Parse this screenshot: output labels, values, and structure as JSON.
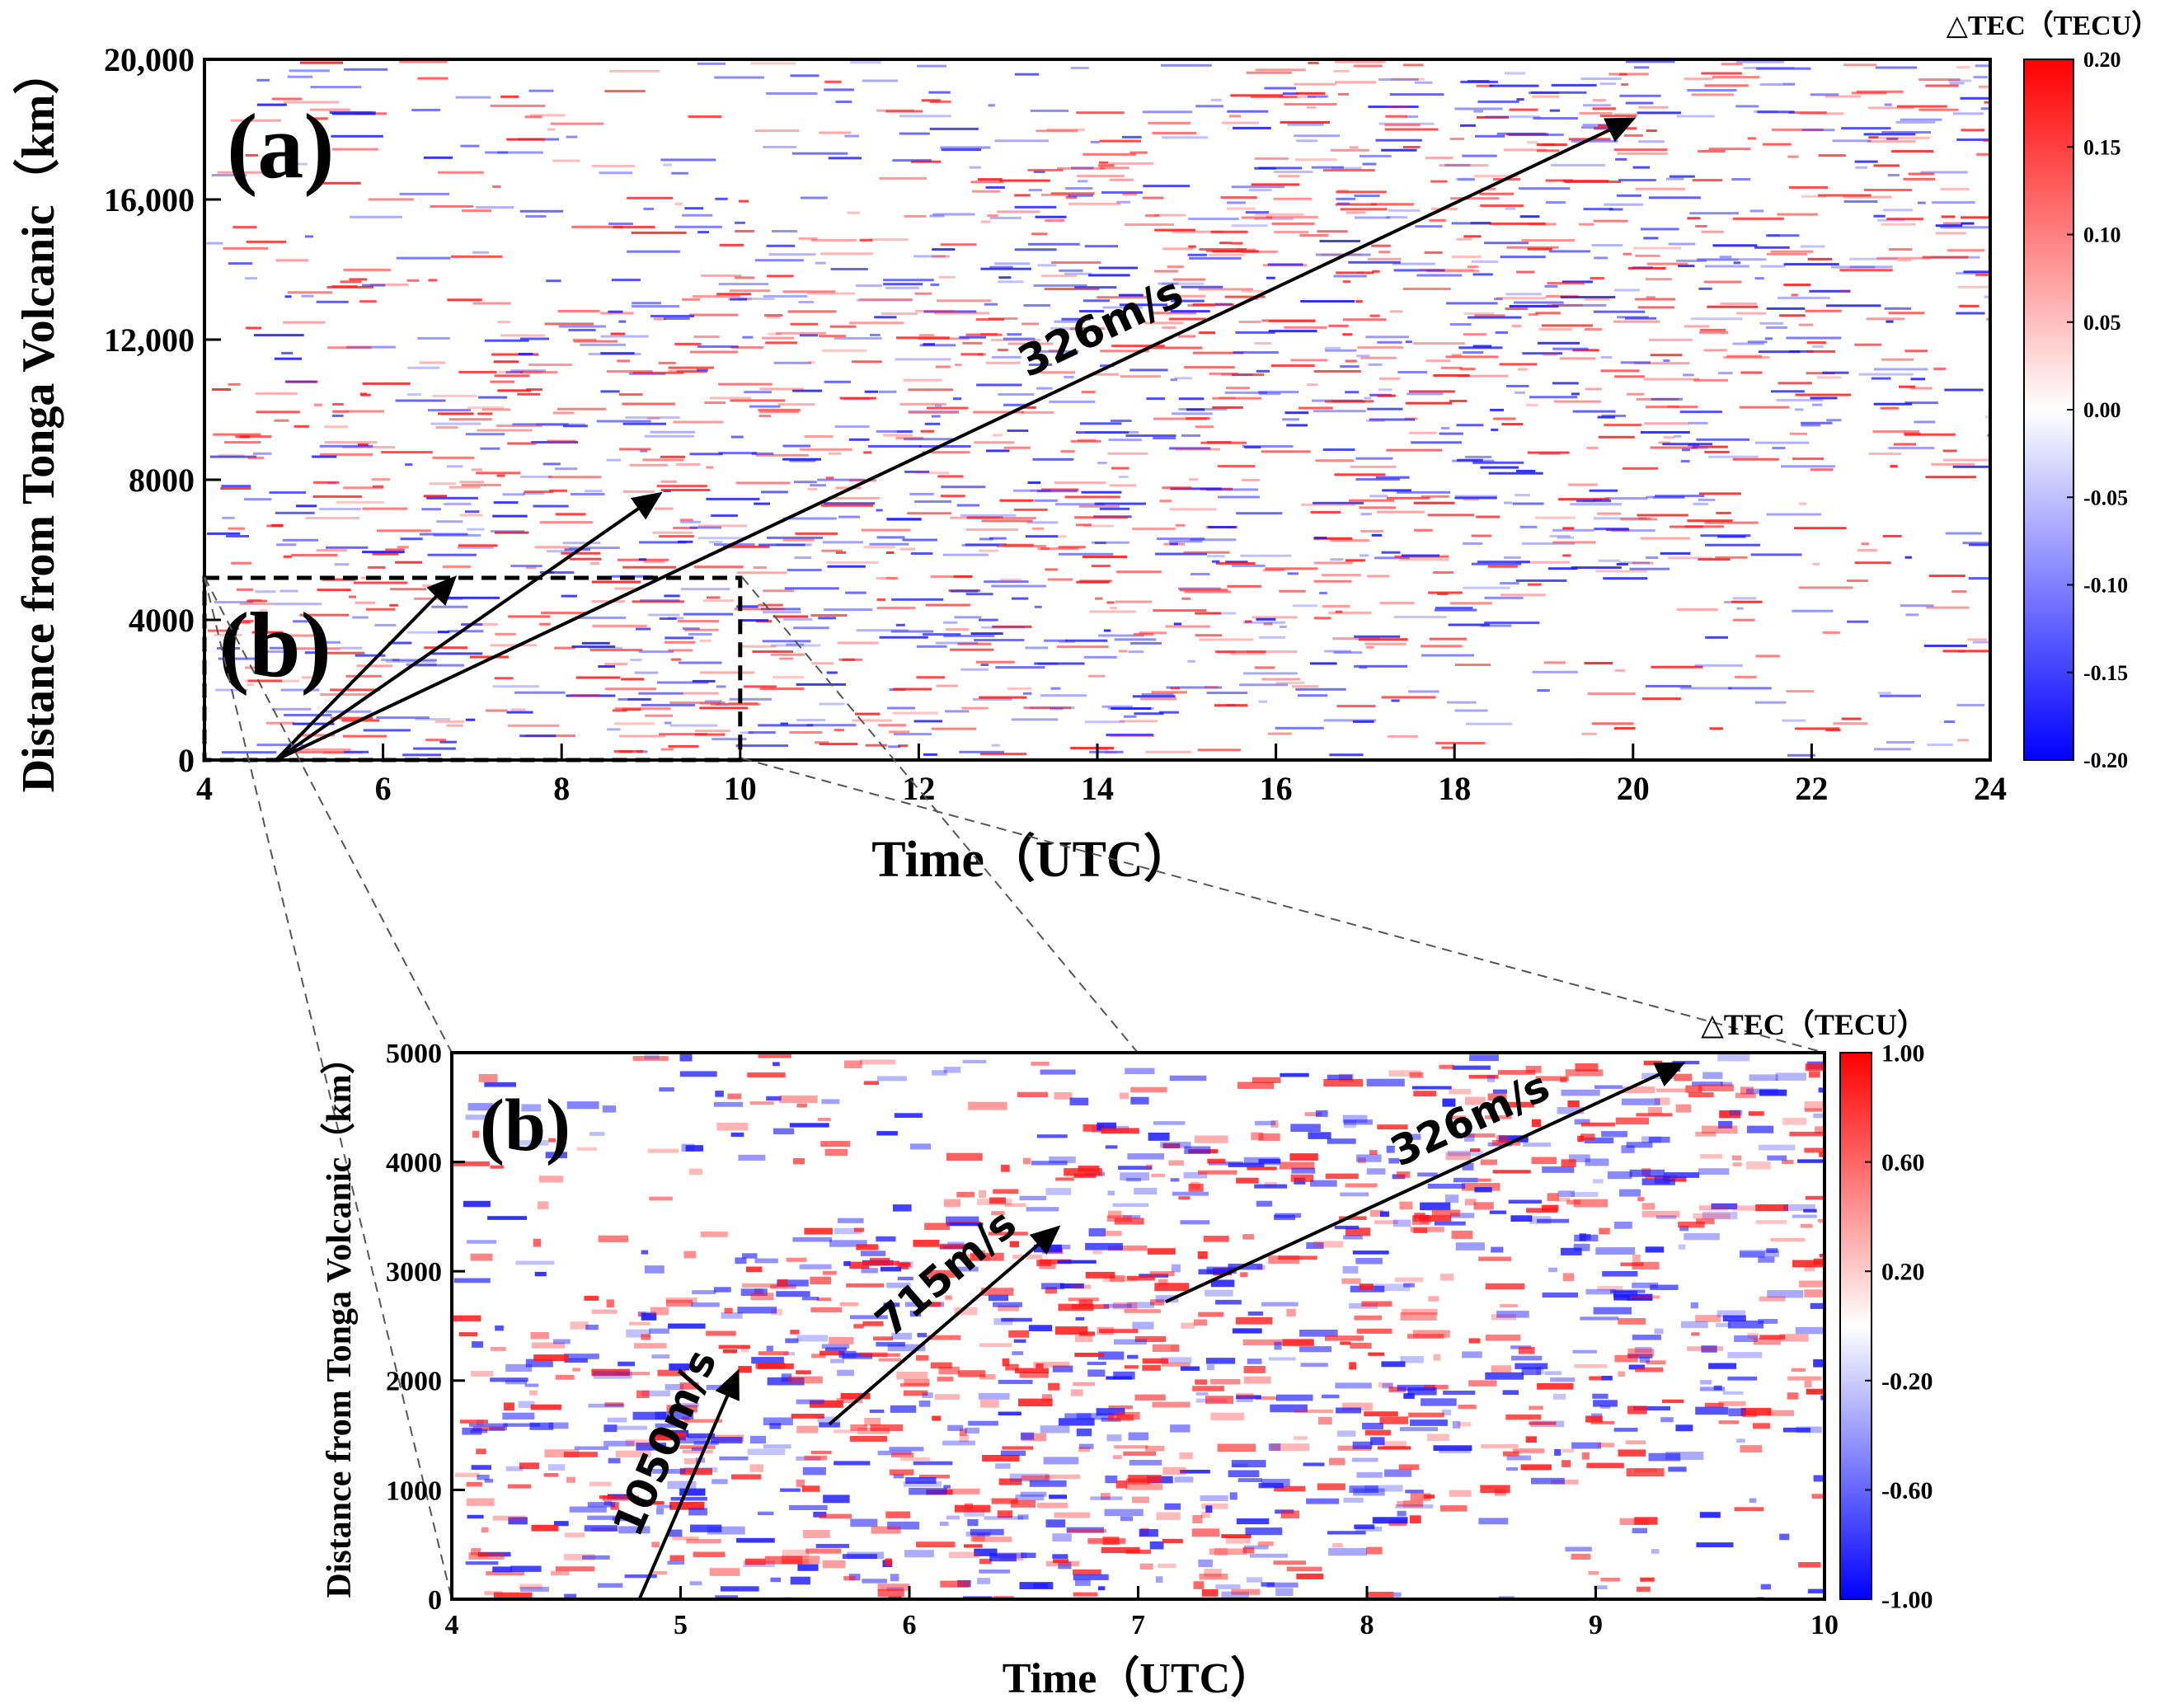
{
  "chart_data": [
    {
      "type": "heatmap",
      "panel_label": "(a)",
      "xlabel": "Time（UTC）",
      "ylabel": "Distance from Tonga Volcanic（km）",
      "xlim": [
        4,
        24
      ],
      "ylim": [
        0,
        20000
      ],
      "xticks": [
        4,
        6,
        8,
        10,
        12,
        14,
        16,
        18,
        20,
        22,
        24
      ],
      "yticks": [
        0,
        4000,
        8000,
        12000,
        16000,
        20000
      ],
      "ytick_labels": [
        "0",
        "4000",
        "8000",
        "12,000",
        "16,000",
        "20,000"
      ],
      "colorbar": {
        "title": "△TEC（TECU）",
        "range": [
          -0.2,
          0.2
        ],
        "ticks": [
          "0.20",
          "0.15",
          "0.10",
          "0.05",
          "0.00",
          "-0.05",
          "-0.10",
          "-0.15",
          "-0.20"
        ],
        "colors": [
          "#0000ff",
          "#ffffff",
          "#ff0000"
        ]
      },
      "annotations": [
        {
          "text": "326m/s",
          "from": [
            4.8,
            0
          ],
          "to": [
            20.0,
            18300
          ]
        },
        {
          "text": "",
          "from": [
            4.8,
            0
          ],
          "to": [
            9.1,
            7600
          ]
        },
        {
          "text": "",
          "from": [
            4.8,
            0
          ],
          "to": [
            6.8,
            5200
          ]
        }
      ],
      "zoom_box": {
        "label": "(b)",
        "x": [
          4,
          10
        ],
        "y": [
          0,
          5200
        ]
      }
    },
    {
      "type": "heatmap",
      "panel_label": "(b)",
      "xlabel": "Time（UTC）",
      "ylabel": "Distance from Tonga Volcanic（km）",
      "xlim": [
        4,
        10
      ],
      "ylim": [
        0,
        5000
      ],
      "xticks": [
        4,
        5,
        6,
        7,
        8,
        9,
        10
      ],
      "yticks": [
        0,
        1000,
        2000,
        3000,
        4000,
        5000
      ],
      "ytick_labels": [
        "0",
        "1000",
        "2000",
        "3000",
        "4000",
        "5000"
      ],
      "colorbar": {
        "title": "△TEC（TECU）",
        "range": [
          -1.0,
          1.0
        ],
        "ticks": [
          "1.00",
          "0.60",
          "0.20",
          "-0.20",
          "-0.60",
          "-1.00"
        ],
        "colors": [
          "#0000ff",
          "#ffffff",
          "#ff0000"
        ]
      },
      "annotations": [
        {
          "text": "1050m/s",
          "from": [
            4.82,
            0
          ],
          "to": [
            5.25,
            2080
          ]
        },
        {
          "text": "715m/s",
          "from": [
            5.65,
            1600
          ],
          "to": [
            6.65,
            3400
          ]
        },
        {
          "text": "326m/s",
          "from": [
            7.12,
            2720
          ],
          "to": [
            9.38,
            4900
          ]
        }
      ]
    }
  ]
}
